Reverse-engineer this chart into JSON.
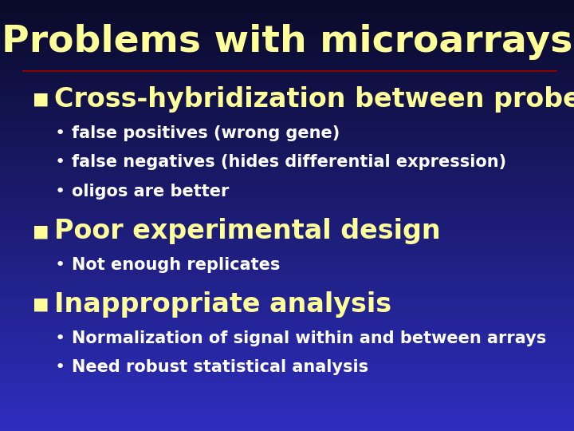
{
  "title": "Problems with microarrays",
  "title_color": "#FFFF99",
  "title_fontsize": 34,
  "title_fontweight": "bold",
  "separator_color": "#8B0000",
  "bg_color_top": "#0A0A28",
  "bg_color_bottom": "#2222BB",
  "section_color": "#FFFF99",
  "section_fontsize": 24,
  "section_fontweight": "bold",
  "bullet_color": "#FFFFFF",
  "bullet_fontsize": 15,
  "sections": [
    {
      "header": "Cross-hybridization between probes",
      "bullets": [
        "false positives (wrong gene)",
        "false negatives (hides differential expression)",
        "oligos are better"
      ]
    },
    {
      "header": "Poor experimental design",
      "bullets": [
        "Not enough replicates"
      ]
    },
    {
      "header": "Inappropriate analysis",
      "bullets": [
        "Normalization of signal within and between arrays",
        "Need robust statistical analysis"
      ]
    }
  ]
}
